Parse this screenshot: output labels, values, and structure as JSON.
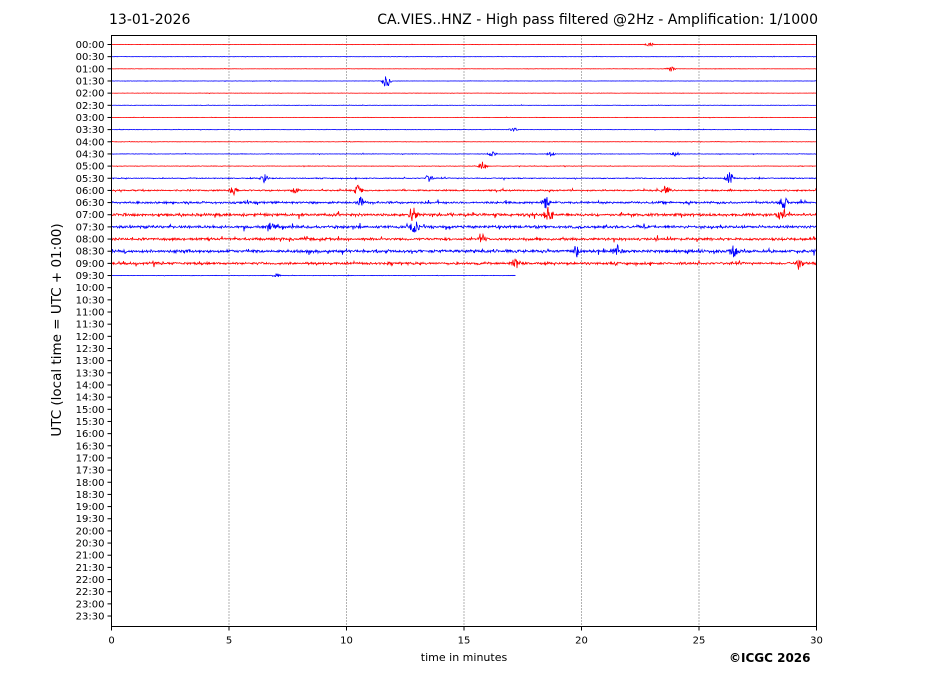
{
  "header": {
    "date": "13-01-2026",
    "title": "CA.VIES..HNZ - High pass filtered @2Hz - Amplification: 1/1000"
  },
  "footer": {
    "copyright": "©ICGC 2026"
  },
  "chart_data": {
    "type": "line",
    "title": "CA.VIES..HNZ - High pass filtered @2Hz - Amplification: 1/1000",
    "xlabel": "time in minutes",
    "ylabel": "UTC (local time = UTC + 01:00)",
    "xlim": [
      0,
      30
    ],
    "xticks": [
      0,
      5,
      10,
      15,
      20,
      25,
      30
    ],
    "grid": "vertical dotted at each x tick",
    "colors": [
      "#ff0000",
      "#0000ff"
    ],
    "row_labels": [
      "00:00",
      "00:30",
      "01:00",
      "01:30",
      "02:00",
      "02:30",
      "03:00",
      "03:30",
      "04:00",
      "04:30",
      "05:00",
      "05:30",
      "06:00",
      "06:30",
      "07:00",
      "07:30",
      "08:00",
      "08:30",
      "09:00",
      "09:30",
      "10:00",
      "10:30",
      "11:00",
      "11:30",
      "12:00",
      "12:30",
      "13:00",
      "13:30",
      "14:00",
      "14:30",
      "15:00",
      "15:30",
      "16:00",
      "16:30",
      "17:00",
      "17:30",
      "18:00",
      "18:30",
      "19:00",
      "19:30",
      "20:00",
      "20:30",
      "21:00",
      "21:30",
      "22:00",
      "22:30",
      "23:00",
      "23:30"
    ],
    "traces": [
      {
        "row": "00:00",
        "end_minute": 30,
        "noise": 0.12,
        "bursts": [
          {
            "at": 22.9,
            "amp": 0.8
          }
        ]
      },
      {
        "row": "00:30",
        "end_minute": 30,
        "noise": 0.12,
        "bursts": []
      },
      {
        "row": "01:00",
        "end_minute": 30,
        "noise": 0.12,
        "bursts": [
          {
            "at": 23.8,
            "amp": 1.0
          }
        ]
      },
      {
        "row": "01:30",
        "end_minute": 30,
        "noise": 0.12,
        "bursts": [
          {
            "at": 11.7,
            "amp": 2.6
          }
        ]
      },
      {
        "row": "02:00",
        "end_minute": 30,
        "noise": 0.12,
        "bursts": []
      },
      {
        "row": "02:30",
        "end_minute": 30,
        "noise": 0.15,
        "bursts": []
      },
      {
        "row": "03:00",
        "end_minute": 30,
        "noise": 0.12,
        "bursts": []
      },
      {
        "row": "03:30",
        "end_minute": 30,
        "noise": 0.15,
        "bursts": [
          {
            "at": 17.1,
            "amp": 0.7
          }
        ]
      },
      {
        "row": "04:00",
        "end_minute": 30,
        "noise": 0.15,
        "bursts": []
      },
      {
        "row": "04:30",
        "end_minute": 30,
        "noise": 0.2,
        "bursts": [
          {
            "at": 16.2,
            "amp": 0.8
          },
          {
            "at": 18.7,
            "amp": 0.8
          },
          {
            "at": 24.0,
            "amp": 0.8
          }
        ]
      },
      {
        "row": "05:00",
        "end_minute": 30,
        "noise": 0.2,
        "bursts": [
          {
            "at": 15.8,
            "amp": 1.5
          }
        ]
      },
      {
        "row": "05:30",
        "end_minute": 30,
        "noise": 0.4,
        "bursts": [
          {
            "at": 6.5,
            "amp": 1.5
          },
          {
            "at": 13.5,
            "amp": 1.2
          },
          {
            "at": 26.3,
            "amp": 2.0
          }
        ]
      },
      {
        "row": "06:00",
        "end_minute": 30,
        "noise": 0.6,
        "bursts": [
          {
            "at": 5.2,
            "amp": 1.5
          },
          {
            "at": 7.8,
            "amp": 1.2
          },
          {
            "at": 10.5,
            "amp": 1.8
          },
          {
            "at": 23.6,
            "amp": 1.5
          }
        ]
      },
      {
        "row": "06:30",
        "end_minute": 30,
        "noise": 0.9,
        "bursts": [
          {
            "at": 10.6,
            "amp": 1.8
          },
          {
            "at": 18.5,
            "amp": 1.8
          },
          {
            "at": 28.6,
            "amp": 2.0
          }
        ]
      },
      {
        "row": "07:00",
        "end_minute": 30,
        "noise": 1.1,
        "bursts": [
          {
            "at": 12.8,
            "amp": 2.5
          },
          {
            "at": 18.6,
            "amp": 2.8
          },
          {
            "at": 28.5,
            "amp": 1.8
          }
        ]
      },
      {
        "row": "07:30",
        "end_minute": 30,
        "noise": 1.1,
        "bursts": [
          {
            "at": 12.9,
            "amp": 2.0
          },
          {
            "at": 6.8,
            "amp": 1.2
          }
        ]
      },
      {
        "row": "08:00",
        "end_minute": 30,
        "noise": 1.0,
        "bursts": [
          {
            "at": 15.8,
            "amp": 1.5
          }
        ]
      },
      {
        "row": "08:30",
        "end_minute": 30,
        "noise": 1.2,
        "bursts": [
          {
            "at": 19.8,
            "amp": 2.0
          },
          {
            "at": 21.5,
            "amp": 1.8
          },
          {
            "at": 26.5,
            "amp": 2.2
          }
        ]
      },
      {
        "row": "09:00",
        "end_minute": 30,
        "noise": 1.0,
        "bursts": [
          {
            "at": 17.2,
            "amp": 2.0
          },
          {
            "at": 29.3,
            "amp": 1.2
          }
        ]
      },
      {
        "row": "09:30",
        "end_minute": 17.2,
        "noise": 0.18,
        "bursts": [
          {
            "at": 7.0,
            "amp": 0.6
          }
        ]
      }
    ]
  }
}
